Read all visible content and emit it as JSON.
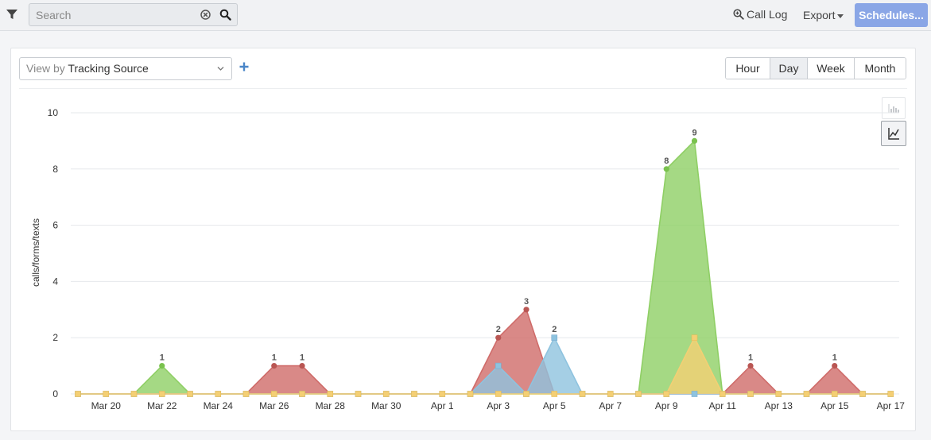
{
  "toolbar": {
    "search": {
      "placeholder": "Search",
      "value": ""
    },
    "call_log_label": "Call Log",
    "export_label": "Export",
    "schedules_label": "Schedules..."
  },
  "controls": {
    "view_by_prefix": "View by",
    "view_by_value": "Tracking Source",
    "granularity": [
      "Hour",
      "Day",
      "Week",
      "Month"
    ],
    "granularity_selected": "Day"
  },
  "colors": {
    "green": "#8fcf65",
    "red": "#cf6b69",
    "blue": "#8ec3df",
    "yellow": "#f4cf74"
  },
  "chart_data": {
    "type": "area",
    "title": "",
    "xlabel": "",
    "ylabel": "calls/forms/texts",
    "ylim": [
      0,
      10
    ],
    "yticks": [
      0,
      2,
      4,
      6,
      8,
      10
    ],
    "grid": true,
    "x": [
      "Mar 19",
      "Mar 20",
      "Mar 21",
      "Mar 22",
      "Mar 23",
      "Mar 24",
      "Mar 25",
      "Mar 26",
      "Mar 27",
      "Mar 28",
      "Mar 29",
      "Mar 30",
      "Mar 31",
      "Apr 1",
      "Apr 2",
      "Apr 3",
      "Apr 4",
      "Apr 5",
      "Apr 6",
      "Apr 7",
      "Apr 8",
      "Apr 9",
      "Apr 10",
      "Apr 11",
      "Apr 12",
      "Apr 13",
      "Apr 14",
      "Apr 15",
      "Apr 16",
      "Apr 17"
    ],
    "xtick_labels": [
      "Mar 20",
      "Mar 22",
      "Mar 24",
      "Mar 26",
      "Mar 28",
      "Mar 30",
      "Apr 1",
      "Apr 3",
      "Apr 5",
      "Apr 7",
      "Apr 9",
      "Apr 11",
      "Apr 13",
      "Apr 15",
      "Apr 17"
    ],
    "series": [
      {
        "name": "green",
        "color": "#8fcf65",
        "values": [
          0,
          0,
          0,
          1,
          0,
          0,
          0,
          0,
          0,
          0,
          0,
          0,
          0,
          0,
          0,
          0,
          0,
          0,
          0,
          0,
          0,
          8,
          9,
          0,
          0,
          0,
          0,
          0,
          0,
          0
        ]
      },
      {
        "name": "red",
        "color": "#cf6b69",
        "values": [
          0,
          0,
          0,
          0,
          0,
          0,
          0,
          1,
          1,
          0,
          0,
          0,
          0,
          0,
          0,
          2,
          3,
          0,
          0,
          0,
          0,
          0,
          0,
          0,
          1,
          0,
          0,
          1,
          0,
          0
        ]
      },
      {
        "name": "blue",
        "color": "#8ec3df",
        "values": [
          0,
          0,
          0,
          0,
          0,
          0,
          0,
          0,
          0,
          0,
          0,
          0,
          0,
          0,
          0,
          1,
          0,
          2,
          0,
          0,
          0,
          0,
          0,
          0,
          0,
          0,
          0,
          0,
          0,
          0
        ]
      },
      {
        "name": "yellow",
        "color": "#f4cf74",
        "values": [
          0,
          0,
          0,
          0,
          0,
          0,
          0,
          0,
          0,
          0,
          0,
          0,
          0,
          0,
          0,
          0,
          0,
          0,
          0,
          0,
          0,
          0,
          2,
          0,
          0,
          0,
          0,
          0,
          0,
          0
        ]
      }
    ],
    "data_labels": [
      {
        "series": "green",
        "x": "Mar 22",
        "value": 1,
        "text": "1"
      },
      {
        "series": "red",
        "x": "Mar 26",
        "value": 1,
        "text": "1"
      },
      {
        "series": "red",
        "x": "Mar 27",
        "value": 1,
        "text": "1"
      },
      {
        "series": "red",
        "x": "Apr 3",
        "value": 2,
        "text": "2"
      },
      {
        "series": "red",
        "x": "Apr 4",
        "value": 3,
        "text": "3"
      },
      {
        "series": "blue",
        "x": "Apr 5",
        "value": 2,
        "text": "2"
      },
      {
        "series": "green",
        "x": "Apr 9",
        "value": 8,
        "text": "8"
      },
      {
        "series": "green",
        "x": "Apr 10",
        "value": 9,
        "text": "9"
      },
      {
        "series": "red",
        "x": "Apr 12",
        "value": 1,
        "text": "1"
      },
      {
        "series": "red",
        "x": "Apr 15",
        "value": 1,
        "text": "1"
      }
    ]
  }
}
